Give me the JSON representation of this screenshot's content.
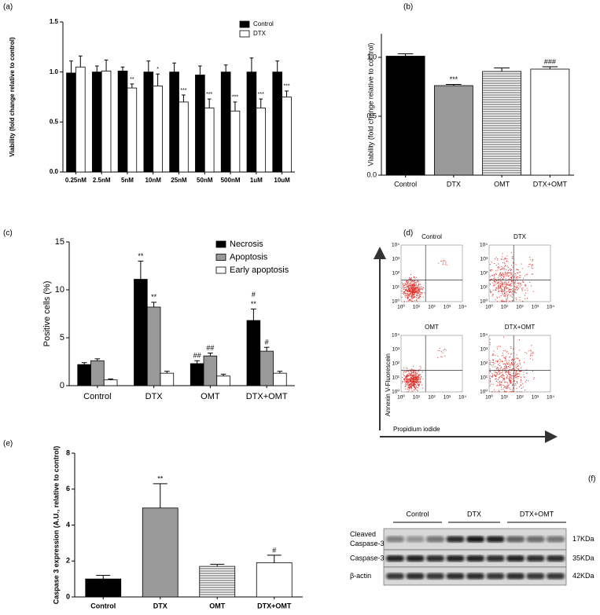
{
  "chart_data": [
    {
      "type": "bar",
      "panel_label": "(a)",
      "y_label": "Viability (fold change relative to control)",
      "categories": [
        "0.25nM",
        "2.5nM",
        "5nM",
        "10nM",
        "25nM",
        "50nM",
        "500nM",
        "1uM",
        "10uM"
      ],
      "series": [
        {
          "name": "Control",
          "color": "#000000",
          "values": [
            0.99,
            1.0,
            1.01,
            1.0,
            1.0,
            0.97,
            1.0,
            1.0,
            1.0
          ],
          "errors": [
            0.12,
            0.06,
            0.04,
            0.11,
            0.09,
            0.09,
            0.07,
            0.14,
            0.11
          ]
        },
        {
          "name": "DTX",
          "color": "#ffffff",
          "values": [
            1.05,
            1.01,
            0.84,
            0.86,
            0.7,
            0.64,
            0.61,
            0.64,
            0.75
          ],
          "errors": [
            0.11,
            0.11,
            0.04,
            0.12,
            0.07,
            0.09,
            0.09,
            0.09,
            0.06
          ],
          "annotations": [
            null,
            null,
            "**",
            "*",
            "***",
            "***",
            "***",
            "***",
            "***"
          ]
        }
      ],
      "ylim": [
        0,
        1.5
      ],
      "yticks": [
        {
          "value": 0,
          "label": "0.0"
        },
        {
          "value": 0.5,
          "label": "0.5"
        },
        {
          "value": 1,
          "label": "1.0"
        },
        {
          "value": 1.5,
          "label": "1.5"
        }
      ],
      "legend": "upper right"
    },
    {
      "type": "bar",
      "panel_label": "(b)",
      "y_label": "Viability (fold change relative to control)",
      "categories": [
        "Control",
        "DTX",
        "OMT",
        "DTX+OMT"
      ],
      "values": [
        1.01,
        0.76,
        0.88,
        0.9
      ],
      "errors": [
        0.02,
        0.01,
        0.03,
        0.02
      ],
      "annotations": [
        null,
        "***",
        null,
        "###"
      ],
      "colors": [
        "#000000",
        "#999999",
        "stripes",
        "#ffffff"
      ],
      "ylim": [
        0,
        1.2
      ],
      "yticks": [
        {
          "value": 0,
          "label": "0.0"
        },
        {
          "value": 0.5,
          "label": "0.5"
        },
        {
          "value": 1,
          "label": "1.0"
        }
      ]
    },
    {
      "type": "bar",
      "panel_label": "(c)",
      "y_label": "Positive cells (%)",
      "categories": [
        "Control",
        "DTX",
        "OMT",
        "DTX+OMT"
      ],
      "series": [
        {
          "name": "Necrosis",
          "color": "#000000",
          "values": [
            2.2,
            11.1,
            2.3,
            6.8
          ],
          "errors": [
            0.2,
            1.9,
            0.3,
            1.2
          ],
          "annotations": [
            null,
            [
              "**"
            ],
            [
              "##"
            ],
            [
              "#",
              "**"
            ]
          ]
        },
        {
          "name": "Apoptosis",
          "color": "#999999",
          "values": [
            2.6,
            8.2,
            3.1,
            3.6
          ],
          "errors": [
            0.2,
            0.5,
            0.3,
            0.4
          ],
          "annotations": [
            null,
            [
              "**"
            ],
            [
              "##"
            ],
            [
              "#"
            ]
          ]
        },
        {
          "name": "Early apoptosis",
          "color": "#ffffff",
          "values": [
            0.6,
            1.3,
            1.0,
            1.3
          ],
          "errors": [
            0.1,
            0.2,
            0.2,
            0.2
          ]
        }
      ],
      "ylim": [
        0,
        15
      ],
      "yticks": [
        0,
        5,
        10,
        15
      ],
      "legend": "upper right"
    },
    {
      "type": "bar",
      "panel_label": "(e)",
      "y_label": "Caspase 3 expression (A.U., relative to control)",
      "categories": [
        "Control",
        "DTX",
        "OMT",
        "DTX+OMT"
      ],
      "values": [
        1.0,
        4.95,
        1.7,
        1.9
      ],
      "errors": [
        0.2,
        1.35,
        0.12,
        0.42
      ],
      "annotations": [
        null,
        "**",
        null,
        "#"
      ],
      "colors": [
        "#000000",
        "#999999",
        "stripes",
        "#ffffff"
      ],
      "ylim": [
        0,
        8
      ],
      "yticks": [
        0,
        2,
        4,
        6,
        8
      ]
    }
  ],
  "flow_cytometry": {
    "panel_label": "(d)",
    "plot_titles": [
      "Control",
      "DTX",
      "OMT",
      "DTX+OMT"
    ],
    "tick_labels": [
      "10⁰",
      "10¹",
      "10²",
      "10³",
      "10⁴"
    ],
    "y_axis_label": "Annexin V-Fluorescein",
    "x_axis_label": "Propidium iodide"
  },
  "western_blot": {
    "panel_label": "(f)",
    "groups": [
      "Control",
      "DTX",
      "DTX+OMT"
    ],
    "rows": [
      {
        "label_lines": [
          "Cleaved",
          "Caspase-3"
        ],
        "size": "17KDa"
      },
      {
        "label_lines": [
          "Caspase-3"
        ],
        "size": "35KDa"
      },
      {
        "label_lines": [
          "β-actin"
        ],
        "size": "42KDa"
      }
    ]
  }
}
